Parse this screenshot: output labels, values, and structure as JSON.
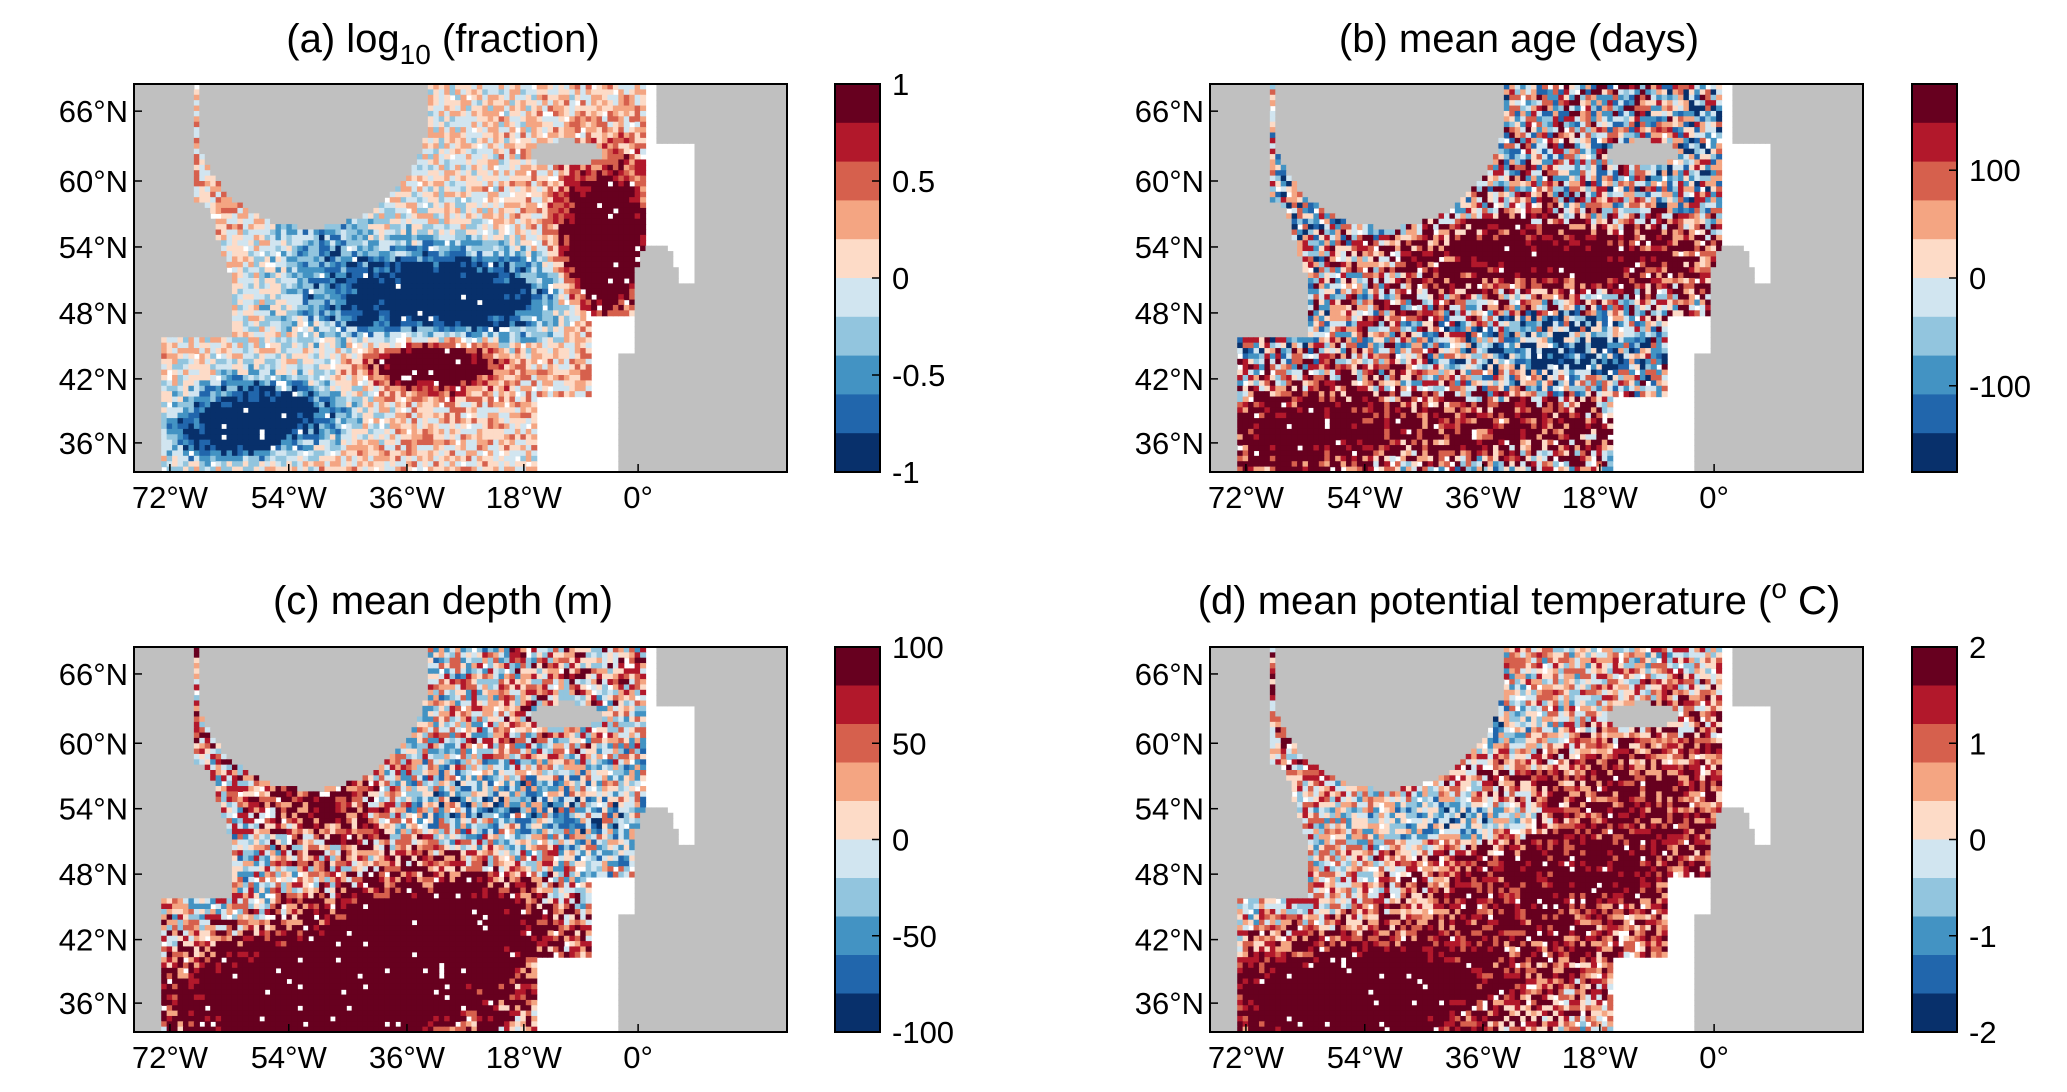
{
  "colormap": [
    "#08306b",
    "#2166ac",
    "#4393c3",
    "#92c5de",
    "#d1e5f0",
    "#fddbc7",
    "#f4a582",
    "#d6604d",
    "#b2182b",
    "#67001f"
  ],
  "land_color": "#c0c0c0",
  "ocean_blank_color": "#ffffff",
  "lat_labels": [
    "66°N",
    "60°N",
    "54°N",
    "48°N",
    "42°N",
    "36°N"
  ],
  "lon_labels": [
    "72°W",
    "54°W",
    "36°W",
    "18°W",
    "0°"
  ],
  "panels": [
    {
      "title": "(a) log",
      "title_sub": "10",
      "title_rest": " (fraction)",
      "cb_ticks": [
        "1",
        "0.5",
        "0",
        "-0.5",
        "-1"
      ],
      "pattern": "fraction"
    },
    {
      "title": "(b) mean age (days)",
      "title_sub": "",
      "title_rest": "",
      "cb_ticks": [
        "100",
        "0",
        "-100"
      ],
      "pattern": "age"
    },
    {
      "title": "(c) mean depth (m)",
      "title_sub": "",
      "title_rest": "",
      "cb_ticks": [
        "100",
        "50",
        "0",
        "-50",
        "-100"
      ],
      "pattern": "depth"
    },
    {
      "title": "(d) mean potential temperature (",
      "title_sub": "",
      "title_sup": "o",
      "title_rest": " C)",
      "cb_ticks": [
        "2",
        "1",
        "0",
        "-1",
        "-2"
      ],
      "pattern": "temp"
    }
  ],
  "chart_data": [
    {
      "type": "heatmap",
      "title": "(a) log10 (fraction)",
      "x_ticks": [
        "72°W",
        "54°W",
        "36°W",
        "18°W",
        "0°"
      ],
      "y_ticks": [
        "66°N",
        "60°N",
        "54°N",
        "48°N",
        "42°N",
        "36°N"
      ],
      "xlim_deg": [
        -80,
        20
      ],
      "ylim_deg": [
        35,
        70
      ],
      "colorbar_range": [
        -1,
        1
      ],
      "colorbar_ticks": [
        1,
        0.5,
        0,
        -0.5,
        -1
      ],
      "colorbar_levels": 10
    },
    {
      "type": "heatmap",
      "title": "(b) mean age (days)",
      "x_ticks": [
        "72°W",
        "54°W",
        "36°W",
        "18°W",
        "0°"
      ],
      "y_ticks": [
        "66°N",
        "60°N",
        "54°N",
        "48°N",
        "42°N",
        "36°N"
      ],
      "xlim_deg": [
        -80,
        20
      ],
      "ylim_deg": [
        35,
        70
      ],
      "colorbar_range": [
        -180,
        180
      ],
      "colorbar_ticks": [
        100,
        0,
        -100
      ],
      "colorbar_levels": 10
    },
    {
      "type": "heatmap",
      "title": "(c) mean depth (m)",
      "x_ticks": [
        "72°W",
        "54°W",
        "36°W",
        "18°W",
        "0°"
      ],
      "y_ticks": [
        "66°N",
        "60°N",
        "54°N",
        "48°N",
        "42°N",
        "36°N"
      ],
      "xlim_deg": [
        -80,
        20
      ],
      "ylim_deg": [
        35,
        70
      ],
      "colorbar_range": [
        -100,
        100
      ],
      "colorbar_ticks": [
        100,
        50,
        0,
        -50,
        -100
      ],
      "colorbar_levels": 10
    },
    {
      "type": "heatmap",
      "title": "(d) mean potential temperature (°C)",
      "x_ticks": [
        "72°W",
        "54°W",
        "36°W",
        "18°W",
        "0°"
      ],
      "y_ticks": [
        "66°N",
        "60°N",
        "54°N",
        "48°N",
        "42°N",
        "36°N"
      ],
      "xlim_deg": [
        -80,
        20
      ],
      "ylim_deg": [
        35,
        70
      ],
      "colorbar_range": [
        -2,
        2
      ],
      "colorbar_ticks": [
        2,
        1,
        0,
        -1,
        -2
      ],
      "colorbar_levels": 10
    }
  ]
}
